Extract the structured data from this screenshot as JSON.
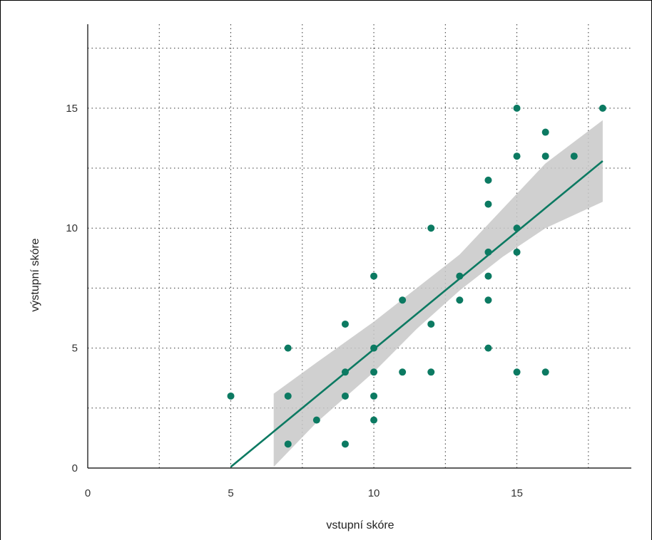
{
  "chart_data": {
    "type": "scatter",
    "title": "",
    "xlabel": "vstupní skóre",
    "ylabel": "výstupní skóre",
    "xlim": [
      0,
      19
    ],
    "ylim": [
      0,
      18.5
    ],
    "x_ticks": [
      0,
      5,
      10,
      15
    ],
    "y_ticks": [
      0,
      5,
      10,
      15
    ],
    "x_grid": [
      2.5,
      5,
      7.5,
      10,
      12.5,
      15,
      17.5
    ],
    "y_grid": [
      2.5,
      5,
      7.5,
      10,
      12.5,
      15,
      17.5
    ],
    "grid": true,
    "points": [
      {
        "x": 5,
        "y": 3
      },
      {
        "x": 7,
        "y": 1
      },
      {
        "x": 7,
        "y": 3
      },
      {
        "x": 7,
        "y": 5
      },
      {
        "x": 8,
        "y": 2
      },
      {
        "x": 9,
        "y": 1
      },
      {
        "x": 9,
        "y": 3
      },
      {
        "x": 9,
        "y": 4
      },
      {
        "x": 9,
        "y": 6
      },
      {
        "x": 10,
        "y": 2
      },
      {
        "x": 10,
        "y": 3
      },
      {
        "x": 10,
        "y": 4
      },
      {
        "x": 10,
        "y": 5
      },
      {
        "x": 10,
        "y": 8
      },
      {
        "x": 11,
        "y": 4
      },
      {
        "x": 11,
        "y": 7
      },
      {
        "x": 12,
        "y": 4
      },
      {
        "x": 12,
        "y": 6
      },
      {
        "x": 12,
        "y": 10
      },
      {
        "x": 13,
        "y": 7
      },
      {
        "x": 13,
        "y": 8
      },
      {
        "x": 14,
        "y": 5
      },
      {
        "x": 14,
        "y": 7
      },
      {
        "x": 14,
        "y": 8
      },
      {
        "x": 14,
        "y": 9
      },
      {
        "x": 14,
        "y": 11
      },
      {
        "x": 14,
        "y": 12
      },
      {
        "x": 15,
        "y": 4
      },
      {
        "x": 15,
        "y": 9
      },
      {
        "x": 15,
        "y": 10
      },
      {
        "x": 15,
        "y": 13
      },
      {
        "x": 15,
        "y": 15
      },
      {
        "x": 16,
        "y": 4
      },
      {
        "x": 16,
        "y": 13
      },
      {
        "x": 16,
        "y": 14
      },
      {
        "x": 17,
        "y": 13
      },
      {
        "x": 18,
        "y": 15
      }
    ],
    "regression_line": {
      "x": [
        5,
        18
      ],
      "y": [
        0.05,
        12.8
      ]
    },
    "confidence_band": {
      "x": [
        6.5,
        8,
        10,
        11.5,
        13,
        14.5,
        16,
        18
      ],
      "upper": [
        3.1,
        4.4,
        6.1,
        7.5,
        8.9,
        10.8,
        12.7,
        14.5
      ],
      "lower": [
        0.05,
        1.9,
        4.0,
        5.8,
        7.4,
        8.8,
        10.0,
        11.1
      ]
    },
    "colors": {
      "points": "#0c7a62",
      "line": "#0c7a62",
      "band": "#c8c8c8"
    }
  }
}
